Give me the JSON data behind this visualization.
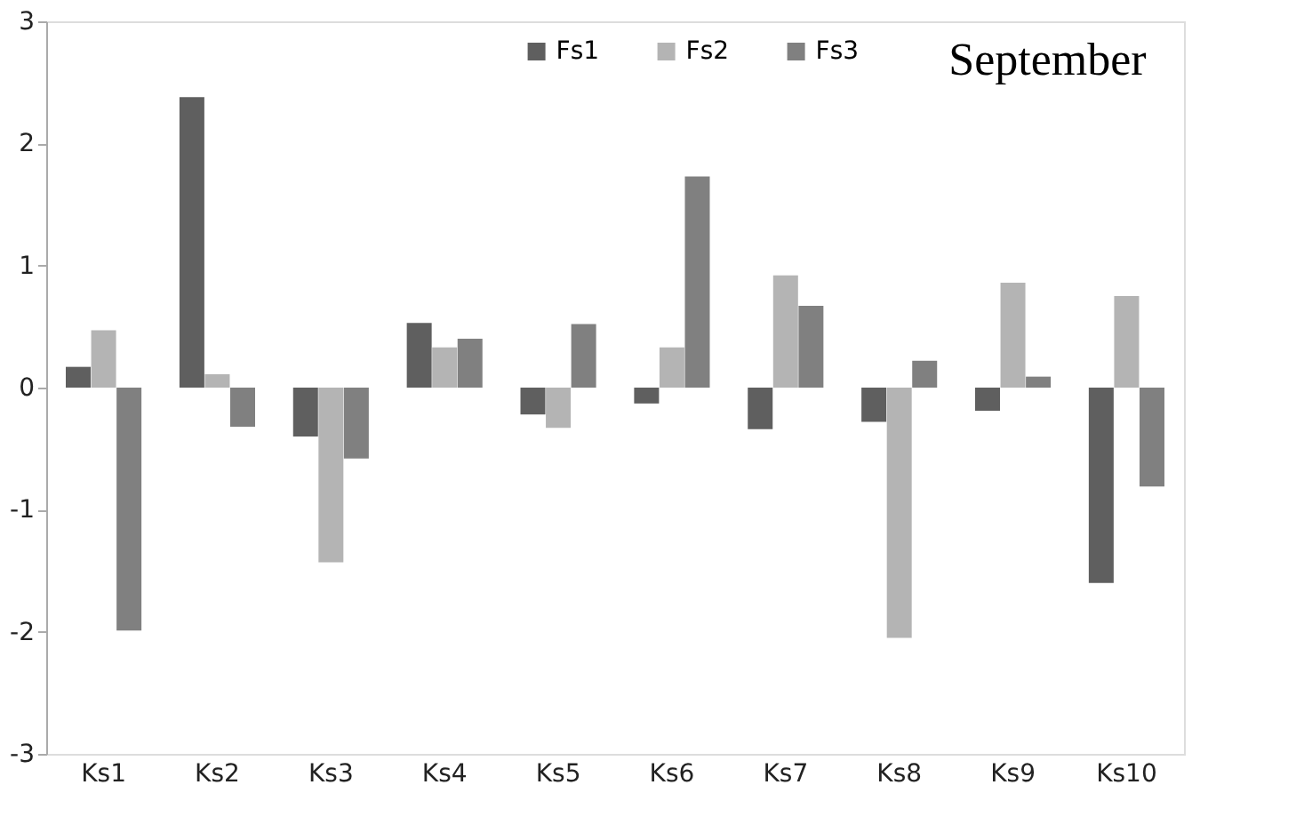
{
  "chart_data": {
    "type": "bar",
    "categories": [
      "Ks1",
      "Ks2",
      "Ks3",
      "Ks4",
      "Ks5",
      "Ks6",
      "Ks7",
      "Ks8",
      "Ks9",
      "Ks10"
    ],
    "series": [
      {
        "name": "Fs1",
        "color": "#5f5f5f",
        "values": [
          0.17,
          2.38,
          -0.4,
          0.53,
          -0.22,
          -0.13,
          -0.34,
          -0.28,
          -0.19,
          -1.6
        ]
      },
      {
        "name": "Fs2",
        "color": "#b4b4b4",
        "values": [
          0.47,
          0.11,
          -1.43,
          0.33,
          -0.33,
          0.33,
          0.92,
          -2.05,
          0.86,
          0.75
        ]
      },
      {
        "name": "Fs3",
        "color": "#808080",
        "values": [
          -1.99,
          -0.32,
          -0.58,
          0.4,
          0.52,
          1.73,
          0.67,
          0.22,
          0.09,
          -0.81
        ]
      }
    ],
    "ylim": [
      -3,
      3
    ],
    "yticks": [
      -3,
      -2,
      -1,
      0,
      1,
      2,
      3
    ],
    "annotations": [
      "September"
    ],
    "grid": false,
    "legend": "top"
  }
}
